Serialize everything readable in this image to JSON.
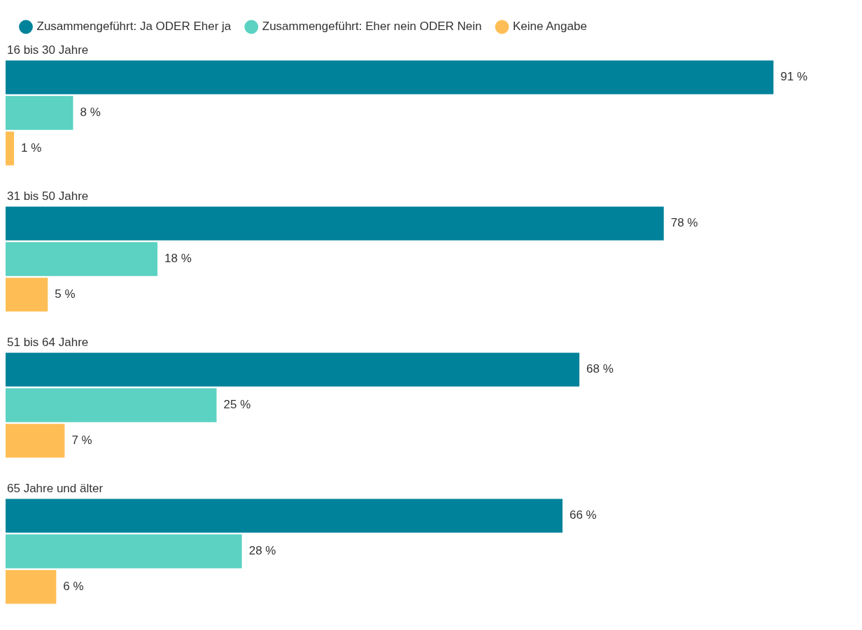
{
  "chart_data": {
    "type": "bar",
    "orientation": "horizontal",
    "legend": "top left",
    "categories": [
      "16 bis 30 Jahre",
      "31 bis 50 Jahre",
      "51 bis 64 Jahre",
      "65 Jahre und älter"
    ],
    "series": [
      {
        "name": "Zusammengeführt: Ja ODER Eher ja",
        "color": "#00829a",
        "values": [
          91,
          78,
          68,
          66
        ],
        "value_labels": [
          "91 %",
          "78 %",
          "68 %",
          "66 %"
        ]
      },
      {
        "name": "Zusammengeführt: Eher nein ODER Nein",
        "color": "#5bd2c2",
        "values": [
          8,
          18,
          25,
          28
        ],
        "value_labels": [
          "8 %",
          "18 %",
          "25 %",
          "28 %"
        ]
      },
      {
        "name": "Keine Angabe",
        "color": "#ffbe55",
        "values": [
          1,
          5,
          7,
          6
        ],
        "value_labels": [
          "1 %",
          "5 %",
          "7 %",
          "6 %"
        ]
      }
    ]
  }
}
